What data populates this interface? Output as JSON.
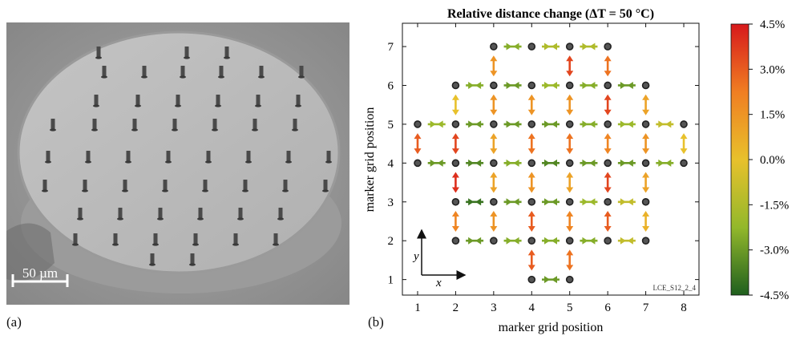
{
  "figure": {
    "panel_a_label": "(a)",
    "panel_b_label": "(b)"
  },
  "sem": {
    "scale_bar_label": "50 µm",
    "description_colors": {
      "background": "#9a9a9a",
      "surface": "#b9b9b9",
      "edge": "#7d7d7d"
    }
  },
  "chart_data": {
    "type": "vector-field",
    "title": "Relative distance change (ΔT = 50 °C)",
    "xlabel": "marker grid position",
    "ylabel": "marker grid position",
    "xlim": [
      0.6,
      8.4
    ],
    "ylim": [
      0.6,
      7.6
    ],
    "xticks": [
      1,
      2,
      3,
      4,
      5,
      6,
      7,
      8
    ],
    "yticks": [
      1,
      2,
      3,
      4,
      5,
      6,
      7
    ],
    "grid": false,
    "annotation": "LCE_S12_2_4",
    "axis_inset": {
      "x": "x",
      "y": "y"
    },
    "colorbar": {
      "min": -4.5,
      "max": 4.5,
      "ticks": [
        4.5,
        3.0,
        1.5,
        0.0,
        -1.5,
        -3.0,
        -4.5
      ],
      "tick_labels": [
        "4.5%",
        "3.0%",
        "1.5%",
        "0.0%",
        "-1.5%",
        "-3.0%",
        "-4.5%"
      ],
      "colors": [
        "#d7191c",
        "#f07e22",
        "#e8c12c",
        "#93b82b",
        "#1f5f1e"
      ]
    },
    "markers": [
      [
        3,
        7
      ],
      [
        4,
        7
      ],
      [
        5,
        7
      ],
      [
        6,
        7
      ],
      [
        2,
        6
      ],
      [
        3,
        6
      ],
      [
        4,
        6
      ],
      [
        5,
        6
      ],
      [
        6,
        6
      ],
      [
        7,
        6
      ],
      [
        1,
        5
      ],
      [
        2,
        5
      ],
      [
        3,
        5
      ],
      [
        4,
        5
      ],
      [
        5,
        5
      ],
      [
        6,
        5
      ],
      [
        7,
        5
      ],
      [
        8,
        5
      ],
      [
        1,
        4
      ],
      [
        2,
        4
      ],
      [
        3,
        4
      ],
      [
        4,
        4
      ],
      [
        5,
        4
      ],
      [
        6,
        4
      ],
      [
        7,
        4
      ],
      [
        8,
        4
      ],
      [
        2,
        3
      ],
      [
        3,
        3
      ],
      [
        4,
        3
      ],
      [
        5,
        3
      ],
      [
        6,
        3
      ],
      [
        7,
        3
      ],
      [
        2,
        2
      ],
      [
        3,
        2
      ],
      [
        4,
        2
      ],
      [
        5,
        2
      ],
      [
        6,
        2
      ],
      [
        7,
        2
      ],
      [
        4,
        1
      ],
      [
        5,
        1
      ]
    ],
    "horizontal_links": [
      {
        "x1": 3,
        "y": 7,
        "value": -2.5
      },
      {
        "x1": 4,
        "y": 7,
        "value": -1.5
      },
      {
        "x1": 5,
        "y": 7,
        "value": -1.5
      },
      {
        "x1": 2,
        "y": 6,
        "value": -2.5
      },
      {
        "x1": 3,
        "y": 6,
        "value": -3.0
      },
      {
        "x1": 4,
        "y": 6,
        "value": -2.0
      },
      {
        "x1": 5,
        "y": 6,
        "value": -2.5
      },
      {
        "x1": 6,
        "y": 6,
        "value": -3.0
      },
      {
        "x1": 1,
        "y": 5,
        "value": -2.0
      },
      {
        "x1": 2,
        "y": 5,
        "value": -3.0
      },
      {
        "x1": 3,
        "y": 5,
        "value": -3.0
      },
      {
        "x1": 4,
        "y": 5,
        "value": -3.0
      },
      {
        "x1": 5,
        "y": 5,
        "value": -2.5
      },
      {
        "x1": 6,
        "y": 5,
        "value": -2.0
      },
      {
        "x1": 7,
        "y": 5,
        "value": -1.0
      },
      {
        "x1": 1,
        "y": 4,
        "value": -3.0
      },
      {
        "x1": 2,
        "y": 4,
        "value": -3.5
      },
      {
        "x1": 3,
        "y": 4,
        "value": -2.5
      },
      {
        "x1": 4,
        "y": 4,
        "value": -3.5
      },
      {
        "x1": 5,
        "y": 4,
        "value": -3.0
      },
      {
        "x1": 6,
        "y": 4,
        "value": -3.0
      },
      {
        "x1": 7,
        "y": 4,
        "value": -2.5
      },
      {
        "x1": 2,
        "y": 3,
        "value": -4.0
      },
      {
        "x1": 3,
        "y": 3,
        "value": -3.0
      },
      {
        "x1": 4,
        "y": 3,
        "value": -3.0
      },
      {
        "x1": 5,
        "y": 3,
        "value": -2.0
      },
      {
        "x1": 6,
        "y": 3,
        "value": -1.0
      },
      {
        "x1": 2,
        "y": 2,
        "value": -3.0
      },
      {
        "x1": 3,
        "y": 2,
        "value": -2.5
      },
      {
        "x1": 4,
        "y": 2,
        "value": -2.5
      },
      {
        "x1": 5,
        "y": 2,
        "value": -2.5
      },
      {
        "x1": 6,
        "y": 2,
        "value": -1.0
      },
      {
        "x1": 4,
        "y": 1,
        "value": -3.0
      }
    ],
    "vertical_links": [
      {
        "x": 3,
        "y1": 6,
        "value": 1.5
      },
      {
        "x": 5,
        "y1": 6,
        "value": 3.5
      },
      {
        "x": 6,
        "y1": 6,
        "value": 2.5
      },
      {
        "x": 2,
        "y1": 5,
        "value": 0.0
      },
      {
        "x": 3,
        "y1": 5,
        "value": 1.5
      },
      {
        "x": 4,
        "y1": 5,
        "value": 1.5
      },
      {
        "x": 5,
        "y1": 5,
        "value": 1.5
      },
      {
        "x": 6,
        "y1": 5,
        "value": 3.5
      },
      {
        "x": 7,
        "y1": 5,
        "value": 1.0
      },
      {
        "x": 1,
        "y1": 4,
        "value": 3.0
      },
      {
        "x": 2,
        "y1": 4,
        "value": 3.5
      },
      {
        "x": 3,
        "y1": 4,
        "value": 1.0
      },
      {
        "x": 4,
        "y1": 4,
        "value": 2.5
      },
      {
        "x": 5,
        "y1": 4,
        "value": 2.5
      },
      {
        "x": 6,
        "y1": 4,
        "value": 2.0
      },
      {
        "x": 7,
        "y1": 4,
        "value": 1.5
      },
      {
        "x": 8,
        "y1": 4,
        "value": 0.0
      },
      {
        "x": 2,
        "y1": 3,
        "value": 4.0
      },
      {
        "x": 3,
        "y1": 3,
        "value": 1.0
      },
      {
        "x": 4,
        "y1": 3,
        "value": 1.5
      },
      {
        "x": 5,
        "y1": 3,
        "value": 1.0
      },
      {
        "x": 6,
        "y1": 3,
        "value": 3.5
      },
      {
        "x": 7,
        "y1": 3,
        "value": 1.0
      },
      {
        "x": 2,
        "y1": 2,
        "value": 2.0
      },
      {
        "x": 3,
        "y1": 2,
        "value": 1.5
      },
      {
        "x": 4,
        "y1": 2,
        "value": 3.0
      },
      {
        "x": 5,
        "y1": 2,
        "value": 2.0
      },
      {
        "x": 6,
        "y1": 2,
        "value": 3.0
      },
      {
        "x": 7,
        "y1": 2,
        "value": 0.5
      },
      {
        "x": 4,
        "y1": 1,
        "value": 3.0
      },
      {
        "x": 5,
        "y1": 1,
        "value": 2.5
      }
    ]
  }
}
